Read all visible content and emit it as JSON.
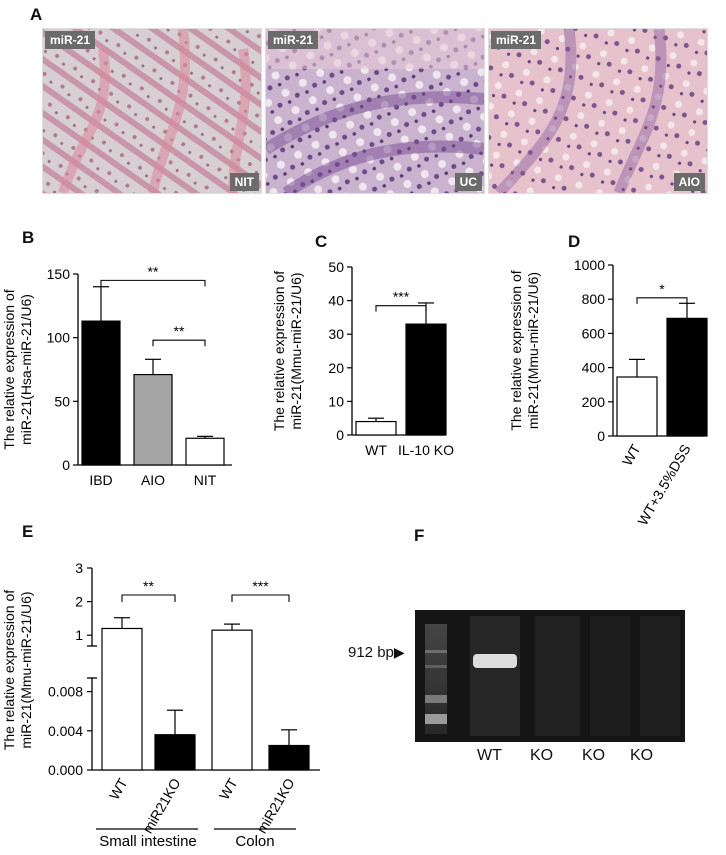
{
  "panels": {
    "A": "A",
    "B": "B",
    "C": "C",
    "D": "D",
    "E": "E",
    "F": "F"
  },
  "micrographs": [
    {
      "tag": "miR-21",
      "condition": "NIT"
    },
    {
      "tag": "miR-21",
      "condition": "UC"
    },
    {
      "tag": "miR-21",
      "condition": "AIO"
    }
  ],
  "gel": {
    "marker_label": "912 bp",
    "lanes": [
      "WT",
      "KO",
      "KO",
      "KO"
    ]
  },
  "chart_data": [
    {
      "id": "B",
      "type": "bar",
      "ylabel_lines": [
        "The relative expression of",
        "miR-21(Hsa-miR-21/U6)"
      ],
      "categories": [
        "IBD",
        "AIO",
        "NIT"
      ],
      "values": [
        113,
        71,
        21
      ],
      "errors": [
        27,
        12,
        1.5
      ],
      "fills": [
        "#000000",
        "#a6a6a6",
        "#ffffff"
      ],
      "ylim": [
        0,
        150
      ],
      "yticks": [
        0,
        50,
        100,
        150
      ],
      "significance": [
        {
          "from": 0,
          "to": 2,
          "label": "**",
          "y": 145
        },
        {
          "from": 1,
          "to": 2,
          "label": "**",
          "y": 98
        }
      ]
    },
    {
      "id": "C",
      "type": "bar",
      "ylabel_lines": [
        "The relative expression of",
        "miR-21(Mmu-miR-21/U6)"
      ],
      "categories": [
        "WT",
        "IL-10 KO"
      ],
      "values": [
        4,
        33
      ],
      "errors": [
        1,
        6.3
      ],
      "fills": [
        "#ffffff",
        "#000000"
      ],
      "ylim": [
        0,
        50
      ],
      "yticks": [
        0,
        10,
        20,
        30,
        40,
        50
      ],
      "significance": [
        {
          "from": 0,
          "to": 1,
          "label": "***",
          "y": 38.5
        }
      ]
    },
    {
      "id": "D",
      "type": "bar",
      "ylabel_lines": [
        "The relative expression of",
        "miR-21(Mmu-miR-21/U6)"
      ],
      "categories": [
        "WT",
        "WT+3.5%DSS"
      ],
      "values": [
        345,
        688
      ],
      "errors": [
        103,
        88
      ],
      "fills": [
        "#ffffff",
        "#000000"
      ],
      "ylim": [
        0,
        1000
      ],
      "yticks": [
        0,
        200,
        400,
        600,
        800,
        1000
      ],
      "significance": [
        {
          "from": 0,
          "to": 1,
          "label": "*",
          "y": 808
        }
      ]
    },
    {
      "id": "E",
      "type": "bar",
      "ylabel_lines": [
        "The relative expression of",
        "miR-21(Mmu-miR-21/U6)"
      ],
      "categories": [
        "WT",
        "miR21KO",
        "WT",
        "miR21KO"
      ],
      "groups": [
        "Small intestine",
        "Colon"
      ],
      "upper_values": [
        1.2,
        null,
        1.15,
        null
      ],
      "upper_errors": [
        0.32,
        null,
        0.18,
        null
      ],
      "lower_values": [
        0.0036,
        0.0025
      ],
      "lower_errors": [
        0.0025,
        0.0016
      ],
      "fills": [
        "#ffffff",
        "#000000",
        "#ffffff",
        "#000000"
      ],
      "upper_ylim": [
        0.5,
        3
      ],
      "upper_yticks": [
        1,
        2,
        3
      ],
      "lower_ylim": [
        0,
        0.01
      ],
      "lower_yticks": [
        "0.000",
        "0.004",
        "0.008"
      ],
      "significance": [
        {
          "from": 0,
          "to": 1,
          "label": "**"
        },
        {
          "from": 2,
          "to": 3,
          "label": "***"
        }
      ]
    }
  ]
}
